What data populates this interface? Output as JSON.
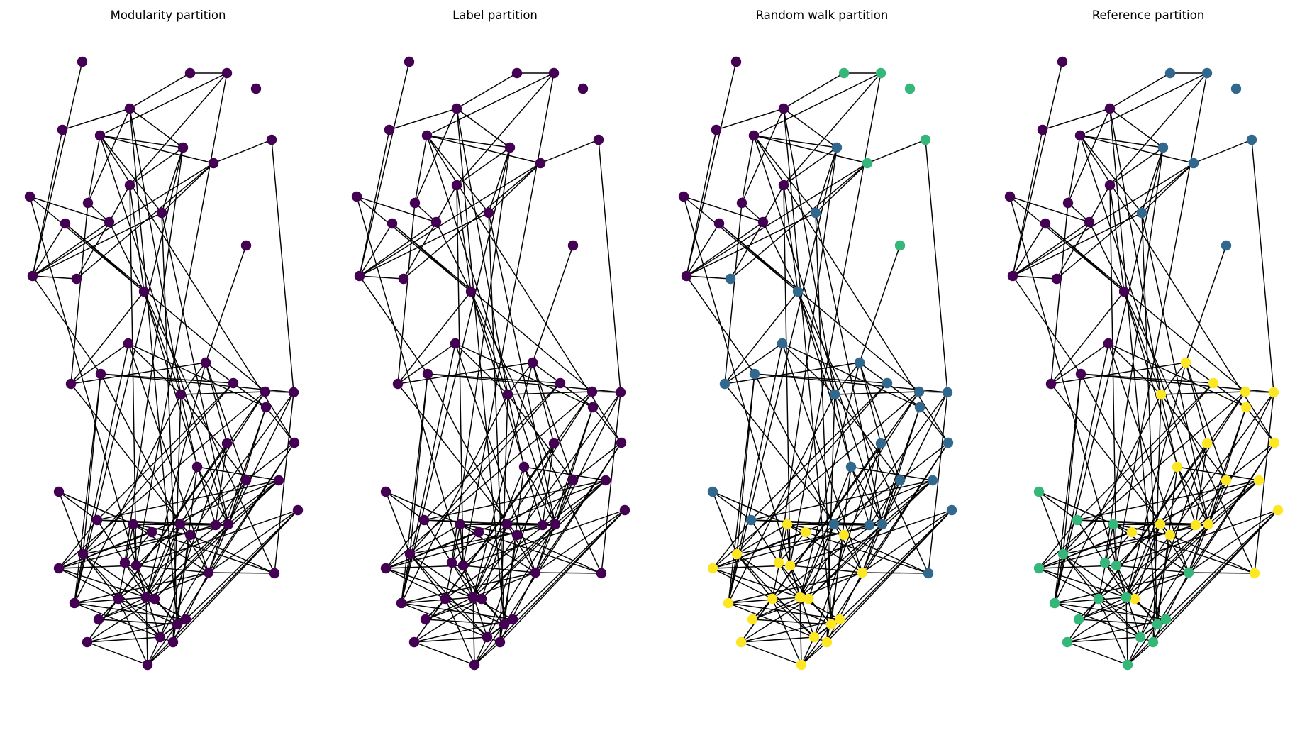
{
  "panels": [
    {
      "title": "Modularity partition",
      "coloring": "modularity"
    },
    {
      "title": "Label partition",
      "coloring": "label"
    },
    {
      "title": "Random walk partition",
      "coloring": "random_walk"
    },
    {
      "title": "Reference partition",
      "coloring": "reference"
    }
  ],
  "community_colors": {
    "purple": "#440154",
    "blue": "#31688e",
    "green": "#35b779",
    "yellow": "#fde725"
  }
}
